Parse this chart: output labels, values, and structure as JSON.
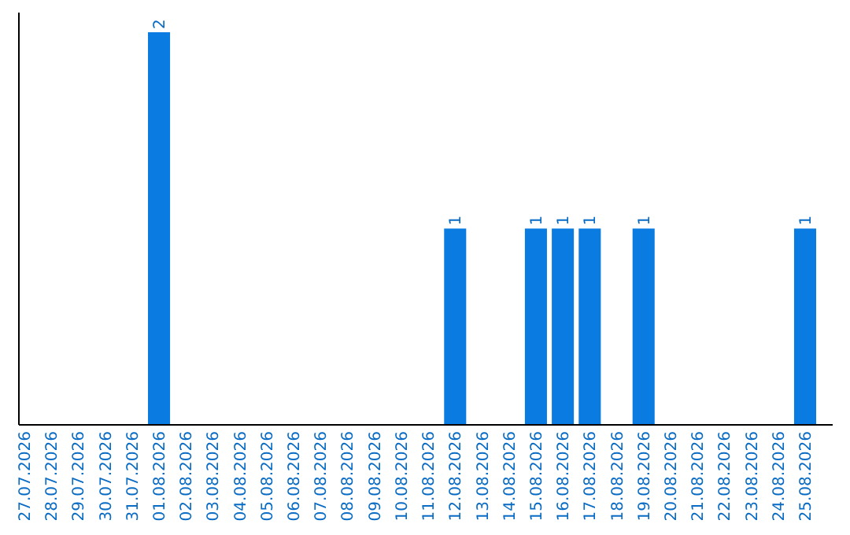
{
  "chart_data": {
    "type": "bar",
    "categories": [
      "27.07.2026",
      "28.07.2026",
      "29.07.2026",
      "30.07.2026",
      "31.07.2026",
      "01.08.2026",
      "02.08.2026",
      "03.08.2026",
      "04.08.2026",
      "05.08.2026",
      "06.08.2026",
      "07.08.2026",
      "08.08.2026",
      "09.08.2026",
      "10.08.2026",
      "11.08.2026",
      "12.08.2026",
      "13.08.2026",
      "14.08.2026",
      "15.08.2026",
      "16.08.2026",
      "17.08.2026",
      "18.08.2026",
      "19.08.2026",
      "20.08.2026",
      "21.08.2026",
      "22.08.2026",
      "23.08.2026",
      "24.08.2026",
      "25.08.2026"
    ],
    "values": [
      0,
      0,
      0,
      0,
      0,
      2,
      0,
      0,
      0,
      0,
      0,
      0,
      0,
      0,
      0,
      0,
      1,
      0,
      0,
      1,
      1,
      1,
      0,
      1,
      0,
      0,
      0,
      0,
      0,
      1
    ],
    "value_labels": [
      null,
      null,
      null,
      null,
      null,
      "2",
      null,
      null,
      null,
      null,
      null,
      null,
      null,
      null,
      null,
      null,
      "1",
      null,
      null,
      "1",
      "1",
      "1",
      null,
      "1",
      null,
      null,
      null,
      null,
      null,
      "1"
    ],
    "color": "#0a7be0",
    "ylim": [
      0,
      2.1
    ],
    "tick_labels": "x"
  }
}
